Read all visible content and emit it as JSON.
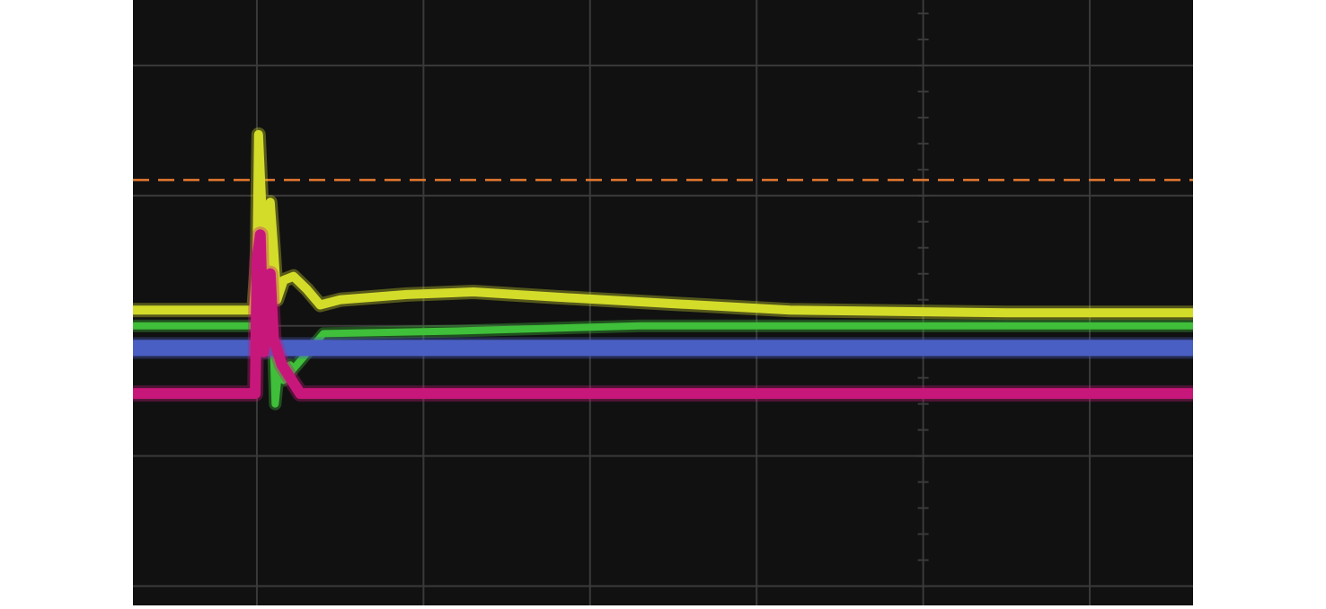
{
  "chart_data": {
    "type": "line",
    "title": "",
    "xlabel": "",
    "ylabel": "",
    "grid": true,
    "xlim": [
      -0.744,
      5.62
    ],
    "ylim": [
      -2.148,
      2.503
    ],
    "background": "#111111",
    "grid_color": "#3a3a3a",
    "threshold": {
      "y": 1.12,
      "color": "#e87a30",
      "style": "dashed"
    },
    "series": [
      {
        "color": "#d4dc2a",
        "points": [
          [
            -0.744,
            0.12
          ],
          [
            -0.02,
            0.12
          ],
          [
            0.0,
            0.5
          ],
          [
            0.01,
            1.47
          ],
          [
            0.03,
            0.9
          ],
          [
            0.05,
            0.3
          ],
          [
            0.07,
            0.5
          ],
          [
            0.08,
            0.95
          ],
          [
            0.1,
            0.6
          ],
          [
            0.12,
            0.2
          ],
          [
            0.16,
            0.35
          ],
          [
            0.22,
            0.38
          ],
          [
            0.3,
            0.28
          ],
          [
            0.38,
            0.16
          ],
          [
            0.5,
            0.2
          ],
          [
            0.9,
            0.24
          ],
          [
            1.3,
            0.26
          ],
          [
            1.8,
            0.22
          ],
          [
            2.5,
            0.17
          ],
          [
            3.2,
            0.12
          ],
          [
            4.5,
            0.1
          ],
          [
            5.62,
            0.1
          ]
        ]
      },
      {
        "color": "#3fbf3a",
        "points": [
          [
            -0.744,
            0.0
          ],
          [
            0.08,
            0.0
          ],
          [
            0.1,
            -0.2
          ],
          [
            0.11,
            -0.6
          ],
          [
            0.13,
            -0.35
          ],
          [
            0.2,
            -0.3
          ],
          [
            0.16,
            -0.42
          ],
          [
            0.4,
            -0.06
          ],
          [
            1.2,
            -0.04
          ],
          [
            2.3,
            0.0
          ],
          [
            5.62,
            0.0
          ]
        ]
      },
      {
        "color": "#4a5fc4",
        "points": [
          [
            -0.744,
            -0.17
          ],
          [
            5.62,
            -0.17
          ]
        ]
      },
      {
        "color": "#c8177a",
        "points": [
          [
            -0.744,
            -0.52
          ],
          [
            -0.01,
            -0.52
          ],
          [
            0.0,
            0.5
          ],
          [
            0.02,
            0.7
          ],
          [
            0.04,
            -0.2
          ],
          [
            0.07,
            -0.0
          ],
          [
            0.08,
            0.4
          ],
          [
            0.1,
            -0.1
          ],
          [
            0.15,
            -0.3
          ],
          [
            0.26,
            -0.52
          ],
          [
            5.62,
            -0.52
          ]
        ]
      }
    ]
  }
}
